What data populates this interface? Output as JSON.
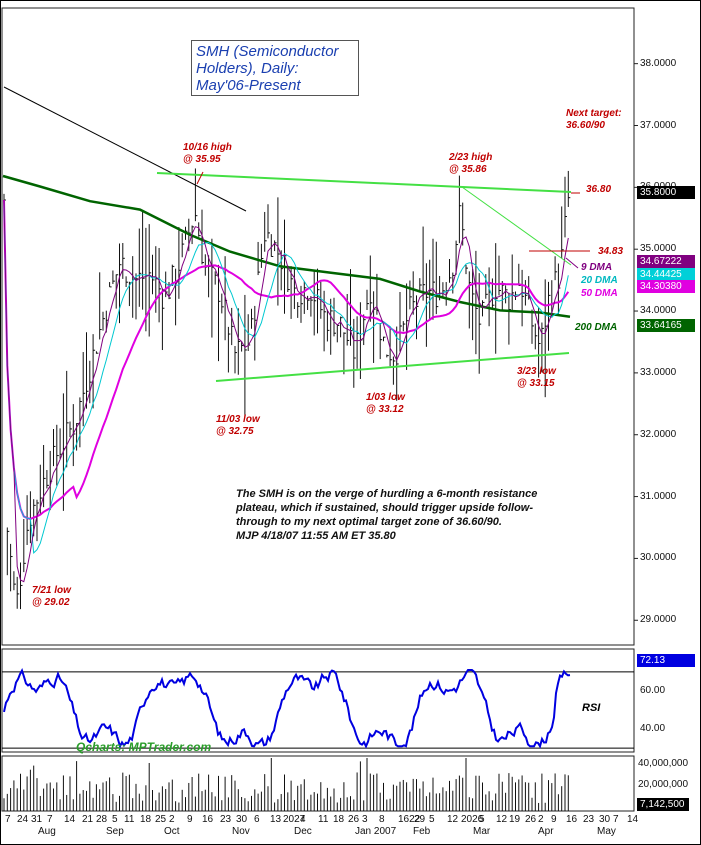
{
  "title_lines": [
    "SMH (Semiconductor",
    "Holders), Daily:",
    "May'06-Present"
  ],
  "annotations": {
    "high_1016": [
      "10/16 high",
      "@ 35.95"
    ],
    "high_223": [
      "2/23 high",
      "@ 35.86"
    ],
    "next_target": [
      "Next target:",
      "36.60/90"
    ],
    "low_721": [
      "7/21 low",
      "@ 29.02"
    ],
    "low_1103": [
      "11/03 low",
      "@ 32.75"
    ],
    "low_103": [
      "1/03 low",
      "@ 33.12"
    ],
    "low_323": [
      "3/23 low",
      "@ 33.15"
    ],
    "level_3680": "36.80",
    "level_3483": "34.83"
  },
  "dma_labels": {
    "d9": "9 DMA",
    "d20": "20 DMA",
    "d50": "50 DMA",
    "d200": "200 DMA"
  },
  "commentary": [
    "The SMH is on the verge of hurdling a 6-month resistance",
    "plateau, which if sustained, should trigger upside follow-",
    "through to my next optimal target zone of 36.60/90.",
    "MJP  4/18/07 11:55 AM ET  35.80"
  ],
  "credit": "Qcharts: MPTrader.com",
  "rsi_label": "RSI",
  "value_boxes": {
    "price": "35.8000",
    "dma9": "34.67222",
    "dma20": "34.44425",
    "dma50": "34.30380",
    "dma200": "33.64165",
    "rsi": "72.13",
    "volume": "7,142,500"
  },
  "colors": {
    "dma9": "#800080",
    "dma20": "#00c8d0",
    "dma50": "#e000e0",
    "dma200": "#006400",
    "resistance": "#44e044",
    "annotation": "#c00000",
    "title": "#1a3fb0"
  },
  "chart_data": {
    "type": "line",
    "price_axis": {
      "ylim": [
        28.6,
        38.9
      ],
      "ticks": [
        "38.0000",
        "37.0000",
        "36.0000",
        "35.0000",
        "34.0000",
        "33.0000",
        "32.0000",
        "31.0000",
        "30.0000",
        "29.0000"
      ]
    },
    "rsi_axis": {
      "ylim": [
        28,
        82
      ],
      "ticks": [
        "60.00",
        "40.00"
      ],
      "overbought": 70,
      "oversold": 30
    },
    "volume_axis": {
      "ticks": [
        "40,000,000",
        "20,000,000"
      ]
    },
    "x_day_labels": [
      "7",
      "24",
      "31",
      "7",
      "14",
      "21",
      "28",
      "5",
      "11",
      "18",
      "25",
      "2",
      "9",
      "16",
      "23",
      "30",
      "6",
      "13",
      "2027",
      "4",
      "11",
      "18",
      "26",
      "3",
      "8",
      "1622",
      "29",
      "5",
      "12",
      "2026",
      "5",
      "12",
      "19",
      "26",
      "2",
      "9",
      "16",
      "23",
      "30",
      "7",
      "14"
    ],
    "x_month_labels": [
      "Aug",
      "Sep",
      "Oct",
      "Nov",
      "Dec",
      "Jan 2007",
      "Feb",
      "Mar",
      "Apr",
      "May"
    ],
    "series": [
      {
        "name": "9 DMA"
      },
      {
        "name": "20 DMA"
      },
      {
        "name": "50 DMA"
      },
      {
        "name": "200 DMA"
      }
    ],
    "key_points": [
      {
        "label": "7/21 low",
        "value": 29.02
      },
      {
        "label": "10/16 high",
        "value": 35.95
      },
      {
        "label": "11/03 low",
        "value": 32.75
      },
      {
        "label": "1/03 low",
        "value": 33.12
      },
      {
        "label": "2/23 high",
        "value": 35.86
      },
      {
        "label": "3/23 low",
        "value": 33.15
      },
      {
        "label": "last",
        "value": 35.8
      }
    ],
    "levels": [
      36.8,
      34.83
    ],
    "target_zone": [
      36.6,
      36.9
    ]
  }
}
